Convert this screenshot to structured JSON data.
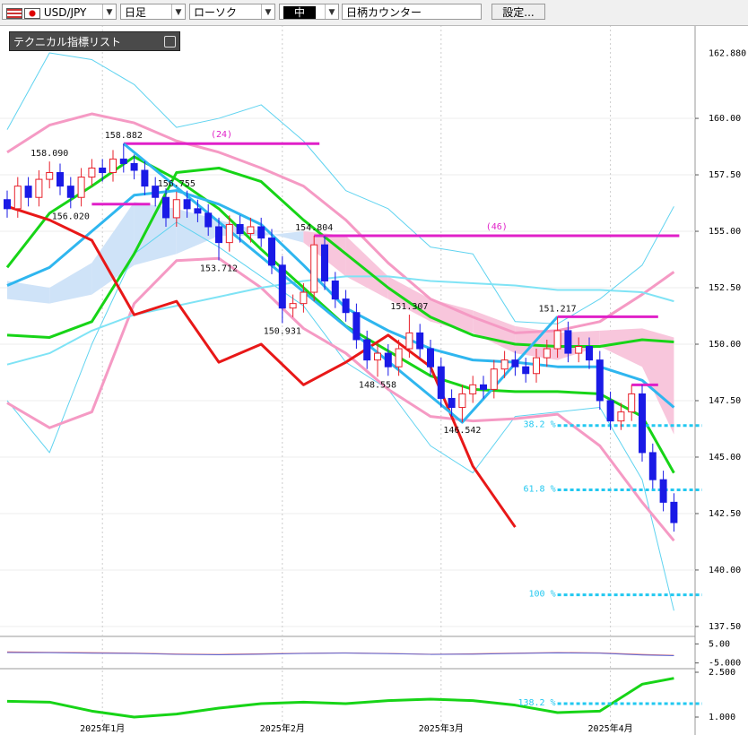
{
  "toolbar": {
    "symbol": "USD/JPY",
    "period": "日足",
    "chart_style": "ローソク",
    "size": "中",
    "counter": "日柄カウンター",
    "settings": "設定..."
  },
  "indicator_panel": "テクニカル指標リスト",
  "chart_data": {
    "type": "candlestick",
    "up_color": "#e8202a",
    "down_color": "#1a1ae6",
    "ylim": [
      137.14,
      164.13
    ],
    "yticks": [
      {
        "value": 160,
        "label": "160.00"
      },
      {
        "value": 157.5,
        "label": "157.50"
      },
      {
        "value": 155,
        "label": "155.00"
      },
      {
        "value": 152.5,
        "label": "152.50"
      },
      {
        "value": 150,
        "label": "150.00"
      },
      {
        "value": 147.5,
        "label": "147.50"
      },
      {
        "value": 145,
        "label": "145.00"
      },
      {
        "value": 142.5,
        "label": "142.50"
      },
      {
        "value": 140,
        "label": "140.00"
      },
      {
        "value": 137.5,
        "label": "137.50"
      }
    ],
    "top_label": {
      "value": 162.88,
      "label": "162.880"
    },
    "xticks": [
      {
        "value": 9,
        "label": "2025年1月"
      },
      {
        "value": 26,
        "label": "2025年2月"
      },
      {
        "value": 41,
        "label": "2025年3月"
      },
      {
        "value": 57,
        "label": "2025年4月"
      }
    ],
    "grid": true,
    "candles": {
      "open": [
        156.4,
        156.0,
        157.0,
        156.5,
        157.3,
        157.6,
        157.0,
        156.5,
        157.4,
        157.8,
        157.6,
        158.2,
        158.0,
        157.7,
        157.0,
        156.5,
        155.6,
        156.4,
        156.0,
        155.8,
        155.2,
        154.5,
        155.3,
        154.9,
        155.2,
        154.7,
        153.5,
        151.6,
        151.8,
        152.3,
        154.4,
        152.8,
        152.0,
        151.4,
        150.2,
        149.3,
        149.6,
        149.0,
        149.8,
        150.5,
        149.8,
        149.0,
        147.6,
        147.2,
        147.8,
        148.2,
        148.0,
        148.9,
        149.3,
        149.0,
        148.7,
        149.4,
        149.8,
        150.6,
        149.6,
        149.9,
        149.3,
        147.5,
        146.6,
        147.0,
        147.8,
        145.2,
        144.0,
        143.0
      ],
      "high": [
        156.8,
        157.4,
        157.4,
        157.7,
        158.09,
        158.0,
        157.4,
        157.8,
        158.2,
        158.2,
        158.6,
        158.882,
        158.4,
        158.1,
        157.4,
        156.9,
        156.755,
        156.8,
        156.4,
        156.2,
        155.6,
        155.7,
        155.7,
        155.6,
        155.6,
        155.1,
        153.9,
        152.2,
        152.7,
        154.804,
        154.8,
        153.2,
        152.4,
        151.8,
        150.6,
        150.0,
        150.0,
        150.2,
        151.307,
        150.9,
        150.2,
        149.4,
        148.0,
        148.2,
        148.6,
        148.6,
        149.3,
        149.7,
        149.7,
        149.4,
        149.8,
        150.2,
        151.217,
        151.0,
        150.3,
        150.3,
        149.7,
        147.9,
        147.4,
        148.2,
        148.2,
        145.6,
        144.4,
        143.4
      ],
      "low": [
        155.6,
        155.6,
        156.1,
        156.1,
        156.9,
        156.6,
        156.02,
        156.1,
        157.0,
        157.2,
        157.2,
        157.6,
        157.3,
        156.6,
        156.1,
        155.2,
        155.2,
        155.6,
        155.4,
        154.8,
        153.712,
        154.1,
        154.5,
        154.5,
        154.3,
        153.1,
        150.931,
        151.2,
        151.4,
        151.9,
        152.4,
        151.6,
        151.0,
        149.8,
        148.9,
        148.558,
        148.6,
        148.6,
        149.4,
        149.4,
        148.6,
        147.2,
        146.8,
        146.542,
        147.4,
        147.6,
        147.6,
        148.5,
        148.6,
        148.3,
        148.3,
        149.0,
        149.4,
        149.2,
        149.2,
        148.9,
        147.1,
        146.2,
        146.2,
        146.6,
        144.8,
        143.6,
        142.6,
        141.7
      ],
      "close": [
        156.0,
        157.0,
        156.5,
        157.3,
        157.6,
        157.0,
        156.5,
        157.4,
        157.8,
        157.6,
        158.2,
        158.0,
        157.7,
        157.0,
        156.5,
        155.6,
        156.4,
        156.0,
        155.8,
        155.2,
        154.5,
        155.3,
        154.9,
        155.2,
        154.7,
        153.5,
        151.6,
        151.8,
        152.3,
        154.4,
        152.8,
        152.0,
        151.4,
        150.2,
        149.3,
        149.6,
        149.0,
        149.8,
        150.5,
        149.8,
        149.0,
        147.6,
        147.2,
        147.8,
        148.2,
        148.0,
        148.9,
        149.3,
        149.0,
        148.7,
        149.4,
        149.8,
        150.6,
        149.6,
        149.9,
        149.3,
        147.5,
        146.6,
        147.0,
        147.8,
        145.2,
        144.0,
        143.0,
        142.1
      ]
    },
    "price_labels": [
      {
        "index": 4,
        "value": 158.09,
        "label": "158.090",
        "side": "above"
      },
      {
        "index": 6,
        "value": 156.02,
        "label": "156.020",
        "side": "below"
      },
      {
        "index": 11,
        "value": 158.882,
        "label": "158.882",
        "side": "above"
      },
      {
        "index": 16,
        "value": 156.755,
        "label": "156.755",
        "side": "above"
      },
      {
        "index": 20,
        "value": 153.712,
        "label": "153.712",
        "side": "below"
      },
      {
        "index": 26,
        "value": 150.931,
        "label": "150.931",
        "side": "below"
      },
      {
        "index": 29,
        "value": 154.804,
        "label": "154.804",
        "side": "above"
      },
      {
        "index": 35,
        "value": 148.558,
        "label": "148.558",
        "side": "below"
      },
      {
        "index": 38,
        "value": 151.307,
        "label": "151.307",
        "side": "above"
      },
      {
        "index": 43,
        "value": 146.542,
        "label": "146.542",
        "side": "below"
      },
      {
        "index": 52,
        "value": 151.217,
        "label": "151.217",
        "side": "above"
      }
    ],
    "line_x": [
      0,
      4,
      8,
      12,
      16,
      20,
      24,
      28,
      32,
      36,
      40,
      44,
      48,
      52,
      56,
      60,
      63
    ],
    "cloud": {
      "up_color": "#cfe3f8",
      "down_color": "#f8c6dc",
      "span_a": [
        152.8,
        152.5,
        153.6,
        156.3,
        156.0,
        155.5,
        155.0,
        154.5,
        153.0,
        152.0,
        151.0,
        150.5,
        149.6,
        149.3,
        149.9,
        149.0,
        146.0
      ],
      "span_b": [
        152.0,
        151.8,
        152.2,
        153.5,
        154.0,
        154.8,
        154.8,
        155.0,
        154.8,
        153.0,
        152.0,
        151.5,
        150.8,
        150.5,
        150.6,
        150.7,
        150.3
      ]
    },
    "lines": [
      {
        "color": "#5fd3f0",
        "width": 1,
        "values": [
          159.5,
          162.9,
          162.6,
          161.5,
          159.6,
          160.0,
          160.6,
          159.0,
          156.8,
          156.0,
          154.3,
          154.0,
          151.0,
          150.9,
          152.0,
          153.5,
          156.1
        ]
      },
      {
        "color": "#5fd3f0",
        "width": 1,
        "values": [
          147.5,
          145.2,
          150.0,
          154.0,
          155.4,
          154.3,
          153.0,
          151.7,
          149.2,
          148.0,
          145.5,
          144.3,
          146.8,
          147.0,
          147.2,
          144.0,
          138.2
        ]
      },
      {
        "color": "#f59ac4",
        "width": 3,
        "values": [
          158.5,
          159.7,
          160.2,
          159.8,
          159.0,
          158.5,
          157.8,
          157.0,
          155.5,
          153.6,
          152.0,
          151.2,
          150.5,
          150.6,
          151.0,
          152.2,
          153.2
        ]
      },
      {
        "color": "#f59ac4",
        "width": 3,
        "values": [
          147.4,
          146.3,
          147.0,
          151.8,
          153.7,
          153.8,
          152.5,
          150.7,
          149.6,
          148.0,
          146.8,
          146.6,
          146.7,
          146.9,
          145.5,
          143.0,
          141.3
        ]
      },
      {
        "color": "#7fe3f5",
        "width": 2,
        "values": [
          149.1,
          149.6,
          150.6,
          151.3,
          151.7,
          152.1,
          152.5,
          152.8,
          153.0,
          153.0,
          152.8,
          152.7,
          152.6,
          152.4,
          152.4,
          152.3,
          151.9
        ]
      },
      {
        "color": "#17d417",
        "width": 3,
        "values": [
          150.4,
          150.3,
          151.0,
          154.0,
          157.6,
          157.8,
          157.2,
          155.5,
          154.0,
          152.5,
          151.2,
          150.4,
          150.0,
          149.9,
          149.9,
          150.2,
          150.1
        ]
      },
      {
        "color": "#17d417",
        "width": 3,
        "values": [
          153.4,
          155.8,
          157.0,
          158.3,
          157.3,
          156.0,
          154.2,
          152.5,
          150.8,
          149.7,
          148.6,
          148.0,
          147.9,
          147.9,
          147.8,
          146.8,
          144.3
        ]
      },
      {
        "color": "#2fb6ef",
        "width": 3,
        "values": [
          152.6,
          153.4,
          155.0,
          156.6,
          156.8,
          156.2,
          155.3,
          153.5,
          151.6,
          150.6,
          149.8,
          149.3,
          149.2,
          149.0,
          149.0,
          148.4,
          147.2
        ]
      },
      {
        "color": "#e81818",
        "width": 3,
        "values": [
          156.1,
          155.5,
          154.6,
          151.3,
          151.9,
          149.2,
          150.0,
          148.2,
          149.2,
          150.4,
          149.0,
          144.6,
          141.9,
          null,
          null,
          null,
          null
        ]
      }
    ],
    "zigzag": {
      "color": "#2fb6ef",
      "x": [
        11,
        43,
        52
      ],
      "values": [
        158.882,
        146.542,
        151.217
      ]
    },
    "levels_color": "#e020c8",
    "levels": [
      {
        "value": 158.882,
        "from": 11,
        "to": 29,
        "label": "(24)"
      },
      {
        "value": 156.2,
        "from": 8,
        "to": 13
      },
      {
        "value": 154.804,
        "from": 29,
        "to": 63,
        "label": "(46)"
      },
      {
        "value": 151.217,
        "from": 52,
        "to": 61
      },
      {
        "value": 148.2,
        "from": 59,
        "to": 61
      }
    ],
    "fib_color": "#22c8f0",
    "fib": [
      {
        "value": 146.4,
        "from": 52,
        "label": "38.2 %"
      },
      {
        "value": 143.55,
        "from": 52,
        "label": "61.8 %"
      },
      {
        "value": 138.9,
        "from": 52,
        "label": "100 %"
      }
    ],
    "panel1": {
      "ylim": [
        -8,
        8
      ],
      "yticks": [
        {
          "value": 5,
          "label": "5.00"
        },
        {
          "value": -5,
          "label": "-5.000"
        }
      ],
      "series": [
        {
          "color": "#e86a6a",
          "values": [
            0.8,
            0.6,
            0.4,
            0.2,
            -0.3,
            -0.5,
            -0.2,
            0.1,
            0.3,
            0.0,
            -0.4,
            -0.2,
            0.2,
            0.5,
            0.3,
            -0.5,
            -1.0
          ]
        },
        {
          "color": "#5a6ad8",
          "values": [
            0.5,
            0.4,
            0.1,
            0.0,
            -0.5,
            -0.7,
            -0.4,
            0.0,
            0.2,
            -0.1,
            -0.5,
            -0.4,
            0.0,
            0.3,
            0.1,
            -0.8,
            -1.2
          ]
        }
      ]
    },
    "panel2": {
      "ylim": [
        0.55,
        2.62
      ],
      "yticks": [
        {
          "value": 2.5,
          "label": "2.500"
        },
        {
          "value": 1,
          "label": "1.000"
        }
      ],
      "series": [
        {
          "color": "#17d417",
          "values": [
            1.53,
            1.5,
            1.2,
            1.0,
            1.1,
            1.3,
            1.45,
            1.5,
            1.45,
            1.55,
            1.6,
            1.55,
            1.4,
            1.15,
            1.2,
            2.1,
            2.3
          ]
        }
      ],
      "fib": {
        "value": 1.45,
        "from": 52,
        "label": "138.2 %"
      }
    }
  }
}
